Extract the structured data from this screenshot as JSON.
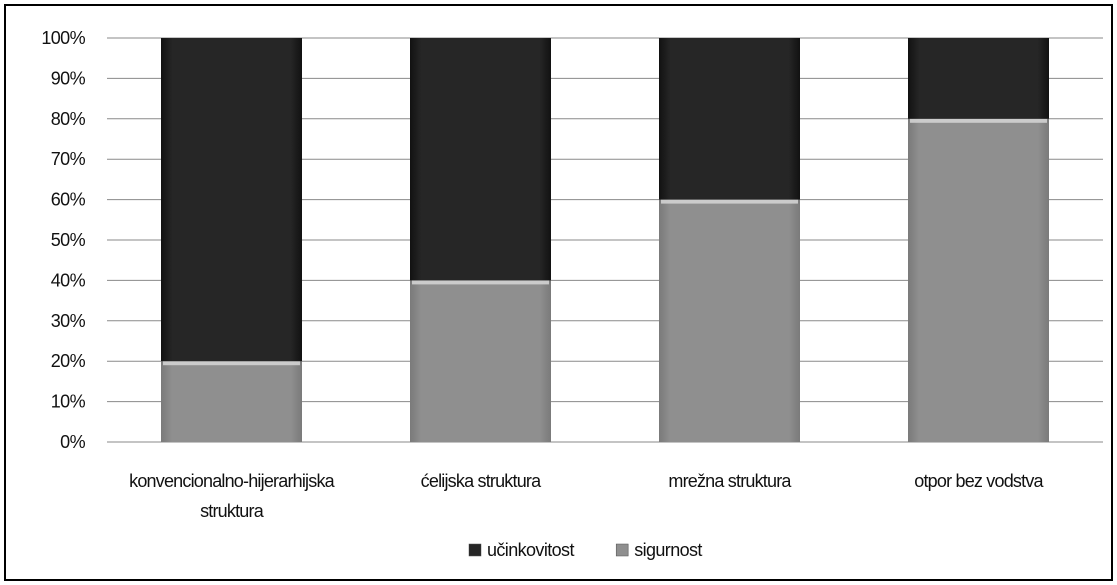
{
  "chart_data": {
    "type": "bar",
    "stacked": true,
    "categories": [
      [
        "konvencionalno-hijerarhijska",
        "struktura"
      ],
      [
        "ćelijska struktura"
      ],
      [
        "mrežna struktura"
      ],
      [
        "otpor bez vodstva"
      ]
    ],
    "series": [
      {
        "name": "sigurnost",
        "values": [
          20,
          40,
          60,
          80
        ],
        "color": "#8c8c8c"
      },
      {
        "name": "učinkovitost",
        "values": [
          80,
          60,
          40,
          20
        ],
        "color": "#232323"
      }
    ],
    "legend_order": [
      "učinkovitost",
      "sigurnost"
    ],
    "ylim": [
      0,
      100
    ],
    "yticks": [
      "0%",
      "10%",
      "20%",
      "30%",
      "40%",
      "50%",
      "60%",
      "70%",
      "80%",
      "90%",
      "100%"
    ],
    "grid": true,
    "legend_position": "bottom",
    "title": "",
    "xlabel": "",
    "ylabel": ""
  }
}
